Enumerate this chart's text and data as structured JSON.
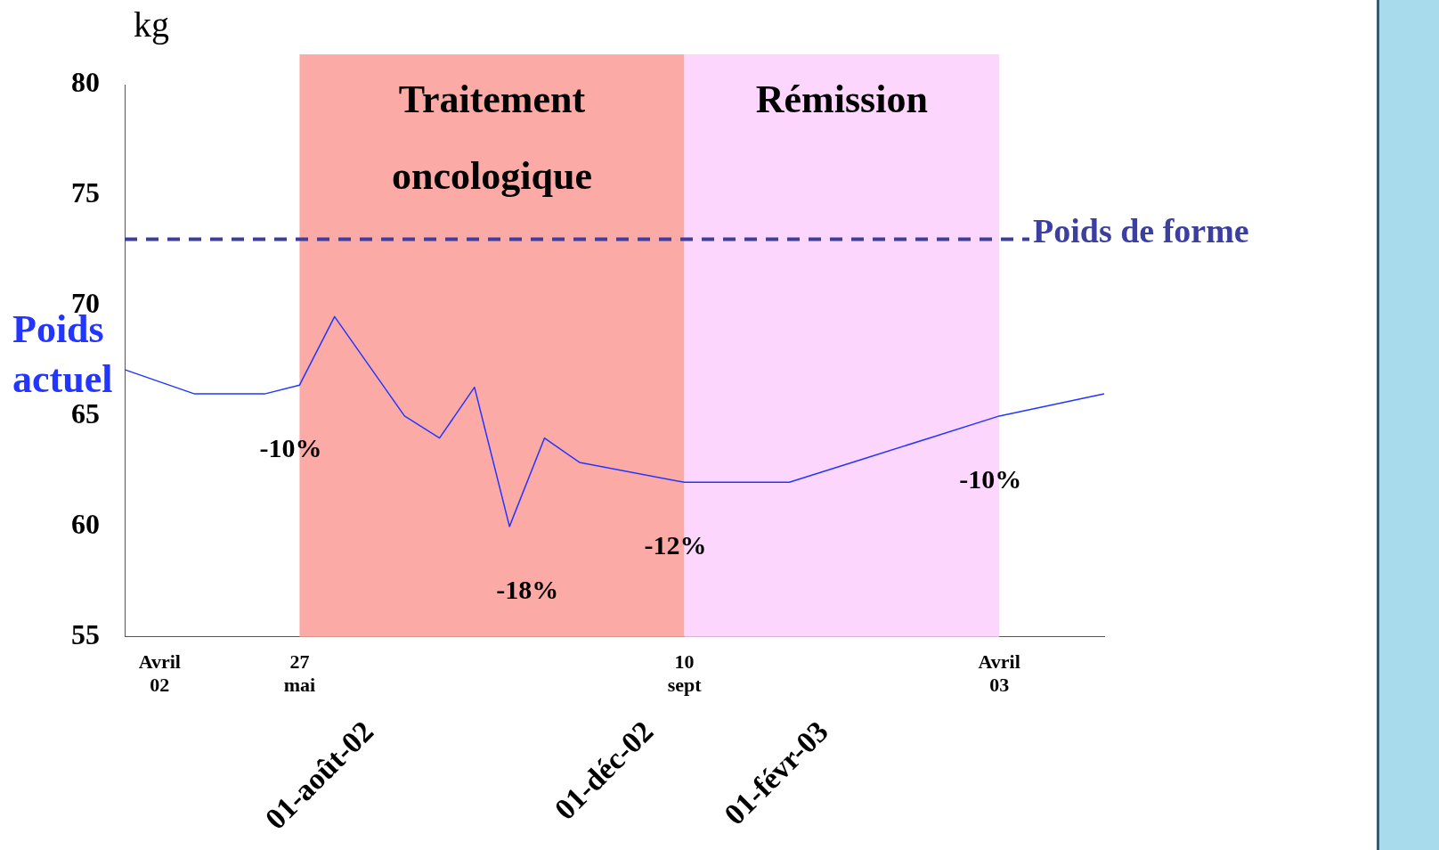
{
  "chart_data": {
    "type": "line",
    "ylabel": "kg",
    "categories": [
      null,
      "Avril 02",
      null,
      null,
      null,
      "27 mai",
      null,
      "01-août-02",
      null,
      null,
      null,
      null,
      null,
      null,
      null,
      "01-déc-02",
      "10 sept",
      null,
      null,
      null,
      "01-févr-03",
      null,
      null,
      null,
      null,
      "Avril 03",
      null,
      null,
      null
    ],
    "ylim": [
      55,
      80
    ],
    "yticks": [
      55,
      60,
      65,
      70,
      75,
      80
    ],
    "grid": false,
    "legend": false,
    "marker": "none",
    "series": [
      {
        "name": "Poids actuel",
        "color": "#2236ff",
        "values": [
          67.1,
          null,
          66,
          null,
          66,
          66.4,
          69.5,
          null,
          65,
          64,
          66.3,
          60,
          64,
          62.9,
          null,
          null,
          62,
          null,
          null,
          62,
          null,
          63,
          null,
          64,
          null,
          65,
          null,
          null,
          66
        ]
      }
    ],
    "annotations": [
      {
        "text": "-10%",
        "x": "27 mai"
      },
      "-18%",
      {
        "text": "-12%",
        "x": "10 sept"
      },
      {
        "text": "-10%",
        "x": "Avril 03"
      }
    ],
    "bands": [
      {
        "axis": "x",
        "from": "27 mai",
        "to": "10 sept",
        "label": "Traitement oncologique",
        "color": "#fcaaa6"
      },
      {
        "axis": "x",
        "from": "10 sept",
        "to": "Avril 03",
        "label": "Rémission",
        "color": "#fcd6fc"
      }
    ],
    "ref_lines": [
      {
        "axis": "y",
        "value": 73,
        "label": "Poids de forme",
        "color": "#3d3fa0",
        "line_style": "dashed"
      }
    ]
  }
}
